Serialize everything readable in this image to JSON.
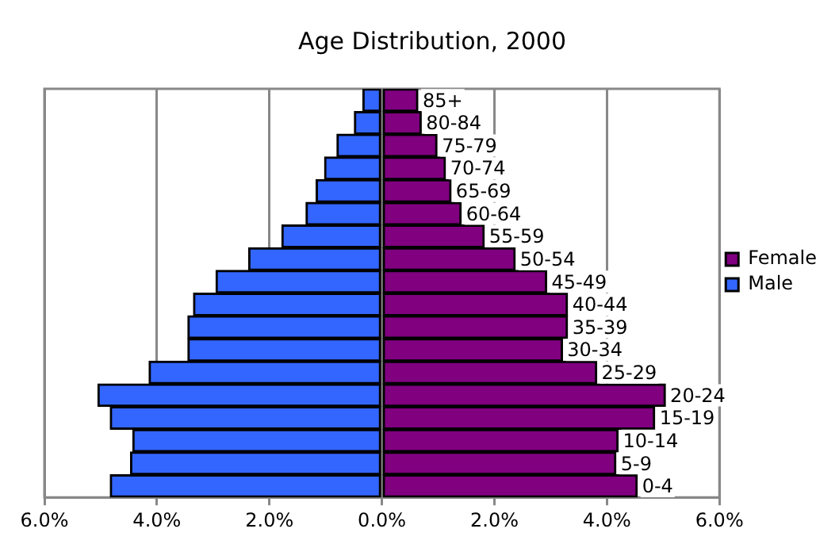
{
  "chart_data": {
    "type": "bar",
    "orientation": "horizontal",
    "stacked": true,
    "title": "Age Distribution, 2000",
    "categories": [
      "85+",
      "80-84",
      "75-79",
      "70-74",
      "65-69",
      "60-64",
      "55-59",
      "50-54",
      "45-49",
      "40-44",
      "35-39",
      "30-34",
      "25-29",
      "20-24",
      "15-19",
      "10-14",
      "5-9",
      "0-4"
    ],
    "series": [
      {
        "name": "Male",
        "color": "#3366ff",
        "values": [
          -0.34,
          -0.49,
          -0.8,
          -1.02,
          -1.17,
          -1.35,
          -1.78,
          -2.37,
          -2.95,
          -3.35,
          -3.45,
          -3.45,
          -4.14,
          -5.05,
          -4.83,
          -4.43,
          -4.47,
          -4.83
        ]
      },
      {
        "name": "Female",
        "color": "#800080",
        "values": [
          0.64,
          0.7,
          0.98,
          1.13,
          1.23,
          1.41,
          1.82,
          2.37,
          2.93,
          3.3,
          3.3,
          3.21,
          3.82,
          5.04,
          4.85,
          4.2,
          4.16,
          4.54
        ]
      }
    ],
    "xlim": [
      -6,
      6
    ],
    "xticks": [
      {
        "value": -6,
        "label": "6.0%"
      },
      {
        "value": -4,
        "label": "4.0%"
      },
      {
        "value": -2,
        "label": "2.0%"
      },
      {
        "value": 0,
        "label": "0.0%"
      },
      {
        "value": 2,
        "label": "2.0%"
      },
      {
        "value": 4,
        "label": "4.0%"
      },
      {
        "value": 6,
        "label": "6.0%"
      }
    ],
    "grid": "x",
    "legend": "right"
  }
}
